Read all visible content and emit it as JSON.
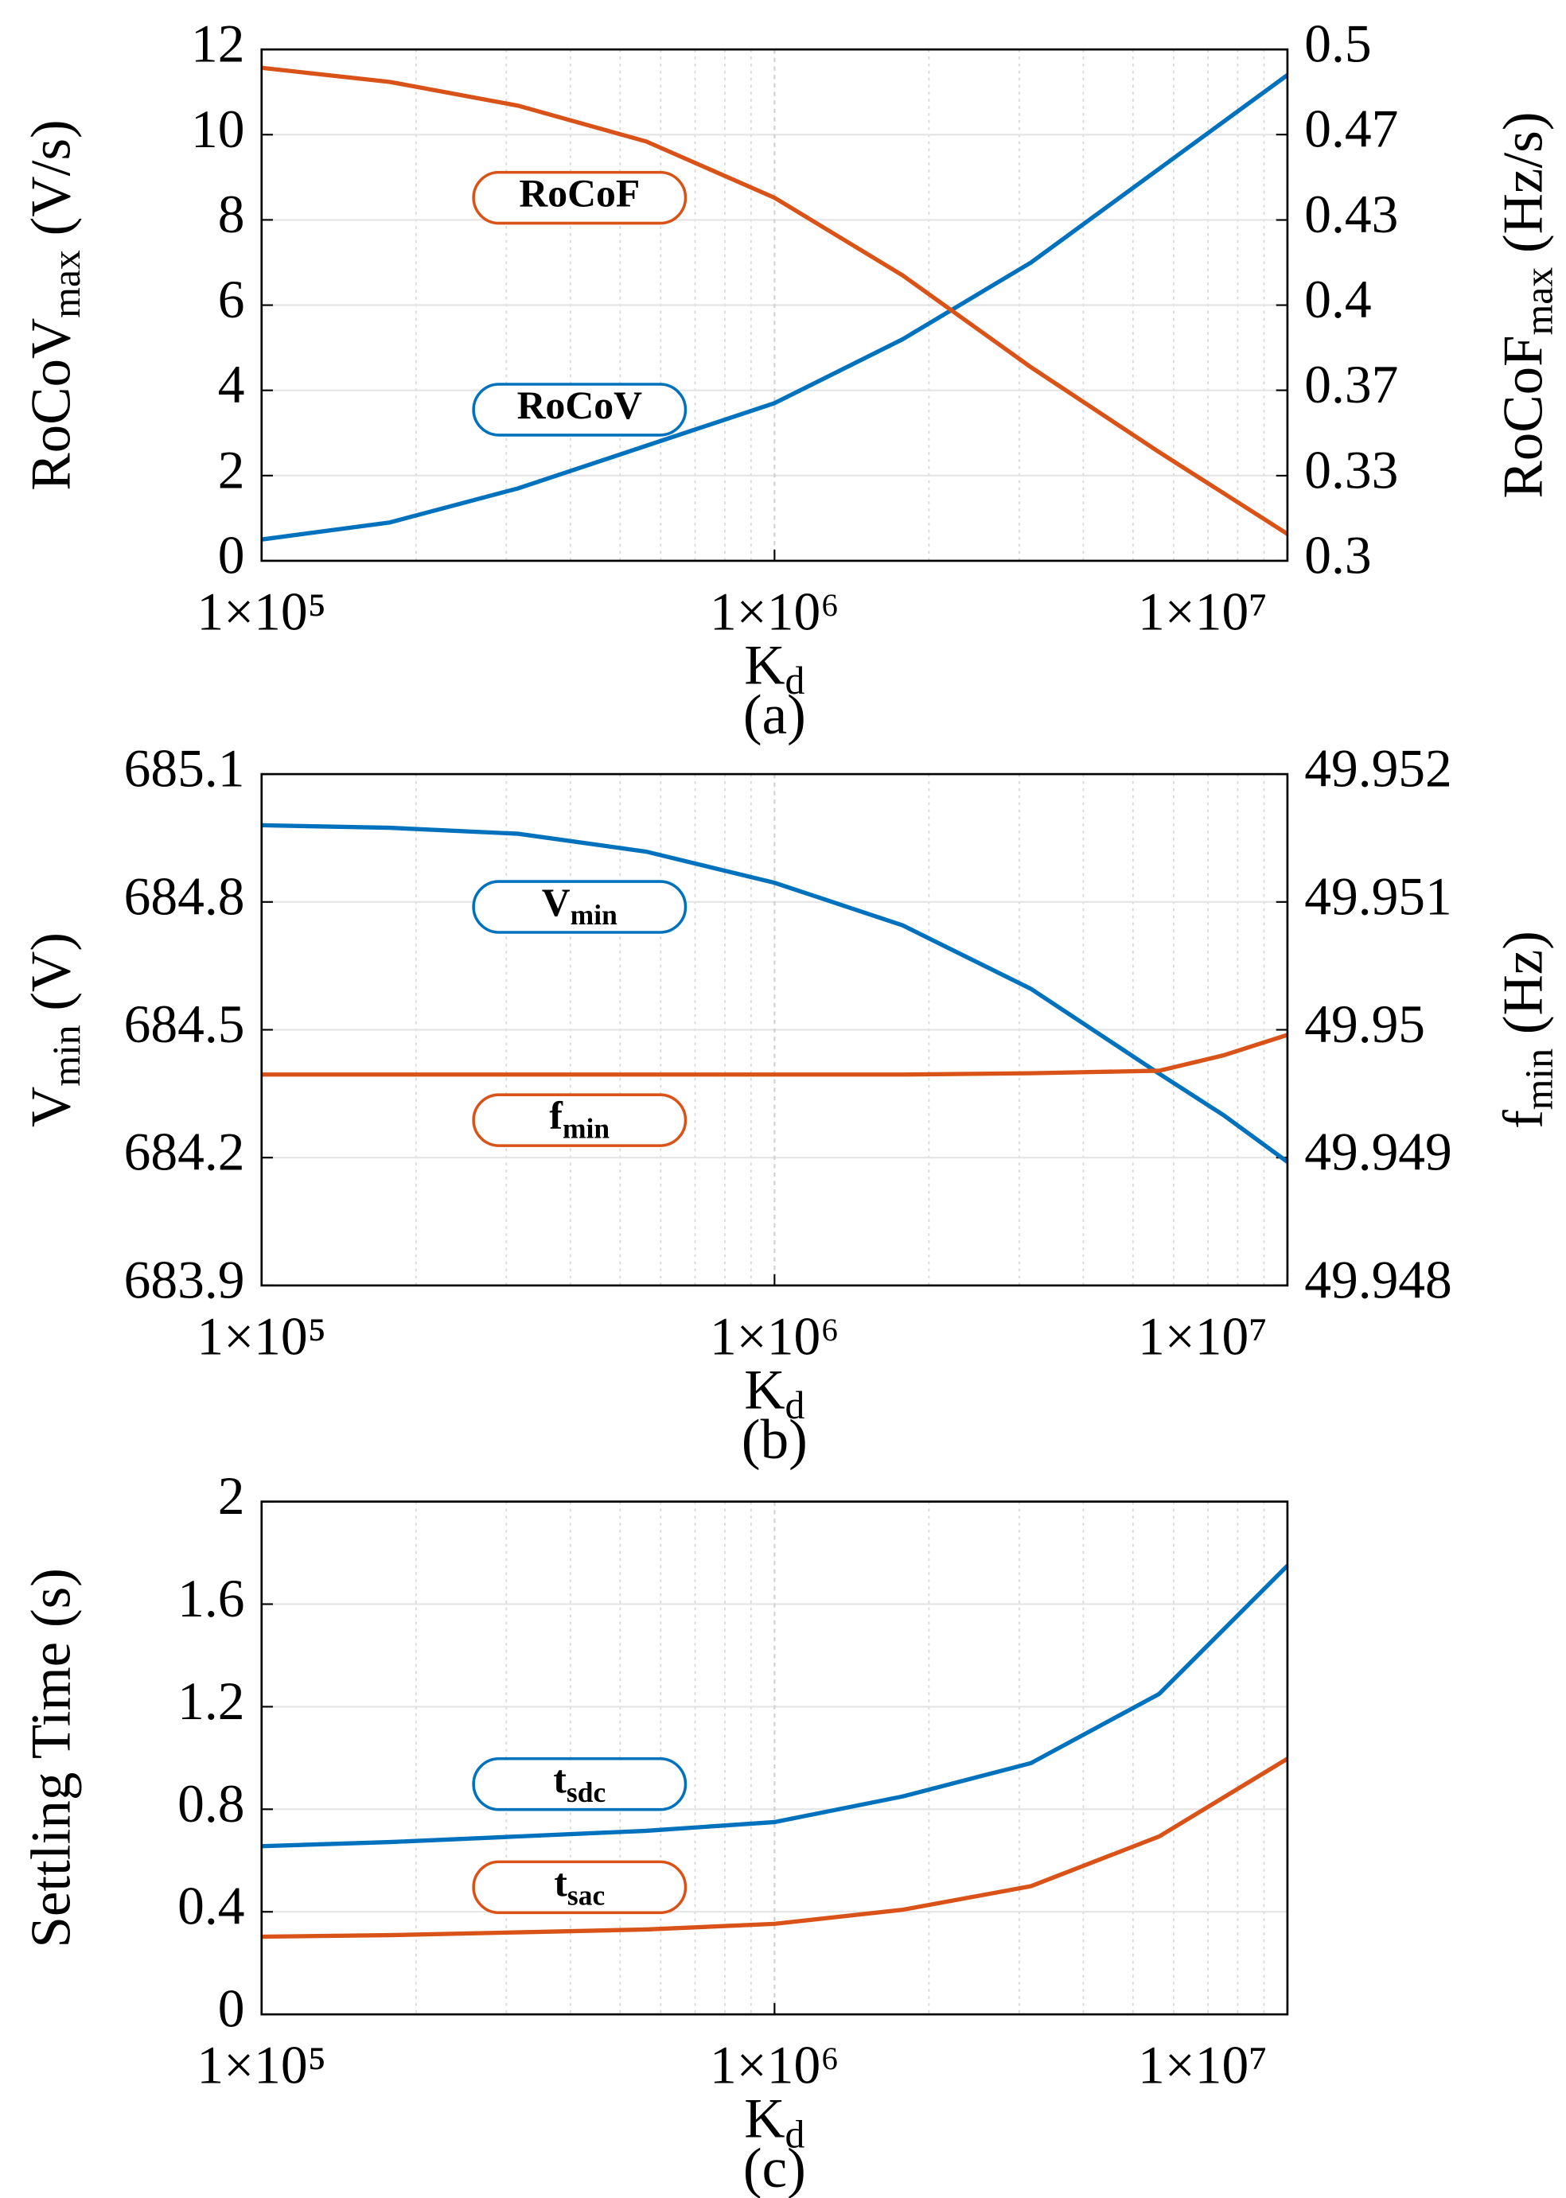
{
  "chart_data": [
    {
      "type": "line",
      "xscale": "log",
      "caption": "(a)",
      "xlabel": "K",
      "xlabel_sub": "d",
      "ylabel": "RoCoV",
      "ylabel_sub": "max",
      "ylabel_unit": "(V/s)",
      "y2label": "RoCoF",
      "y2label_sub": "max",
      "y2label_unit": "(Hz/s)",
      "grid": true,
      "minor_grid": true,
      "x": [
        100000,
        177800,
        316200,
        562300,
        1000000,
        1778000,
        3162000,
        5623000,
        10000000
      ],
      "xlim": [
        100000,
        10000000
      ],
      "xticks": [
        {
          "value": 100000,
          "label": "1×10⁵"
        },
        {
          "value": 1000000,
          "label": "1×10⁶"
        },
        {
          "value": 10000000,
          "label": "1×10⁷"
        }
      ],
      "ylim": [
        0,
        12
      ],
      "yticks": [
        0,
        2,
        4,
        6,
        8,
        10,
        12
      ],
      "y2lim": [
        0.3,
        0.5
      ],
      "y2ticks": [
        0.3,
        {
          "value": 0.3333,
          "label": "0.33"
        },
        {
          "value": 0.3667,
          "label": "0.37"
        },
        0.4,
        {
          "value": 0.4333,
          "label": "0.43"
        },
        {
          "value": 0.4667,
          "label": "0.47"
        },
        0.5
      ],
      "series": [
        {
          "name": "RoCoV",
          "color": "#0072bd",
          "values": [
            0.5,
            0.9,
            1.7,
            2.7,
            3.7,
            5.2,
            7.0,
            9.2,
            11.4
          ]
        },
        {
          "name": "RoCoF",
          "color": "#d95319",
          "axis": "y2",
          "values": [
            0.4928,
            0.4873,
            0.478,
            0.464,
            0.442,
            0.4116,
            0.3757,
            0.3425,
            0.3105
          ]
        }
      ]
    },
    {
      "type": "line",
      "xscale": "log",
      "caption": "(b)",
      "xlabel": "K",
      "xlabel_sub": "d",
      "ylabel": "V",
      "ylabel_sub": "min",
      "ylabel_unit": "(V)",
      "y2label": "f",
      "y2label_sub": "min",
      "y2label_unit": "(Hz)",
      "grid": true,
      "minor_grid": true,
      "x": [
        100000,
        177800,
        316200,
        562300,
        1000000,
        1778000,
        3162000,
        5623000,
        7499000,
        10000000
      ],
      "xlim": [
        100000,
        10000000
      ],
      "xticks": [
        {
          "value": 100000,
          "label": "1×10⁵"
        },
        {
          "value": 1000000,
          "label": "1×10⁶"
        },
        {
          "value": 10000000,
          "label": "1×10⁷"
        }
      ],
      "ylim": [
        683.9,
        685.1
      ],
      "yticks": [
        683.9,
        684.2,
        684.5,
        684.8,
        685.1
      ],
      "y2lim": [
        49.948,
        49.952
      ],
      "y2ticks": [
        49.948,
        49.949,
        49.95,
        49.951,
        49.952
      ],
      "series": [
        {
          "name": "V",
          "name_sub": "min",
          "color": "#0072bd",
          "values": [
            684.98,
            684.974,
            684.96,
            684.918,
            684.845,
            684.745,
            684.596,
            684.397,
            684.3,
            684.19
          ]
        },
        {
          "name": "f",
          "name_sub": "min",
          "color": "#d95319",
          "axis": "y2",
          "values": [
            49.94965,
            49.94965,
            49.94965,
            49.94965,
            49.94965,
            49.94965,
            49.94966,
            49.94968,
            49.9498,
            49.94996
          ]
        }
      ]
    },
    {
      "type": "line",
      "xscale": "log",
      "caption": "(c)",
      "xlabel": "K",
      "xlabel_sub": "d",
      "ylabel": "Settling Time (s)",
      "grid": true,
      "minor_grid": true,
      "x": [
        100000,
        177800,
        316200,
        562300,
        1000000,
        1778000,
        3162000,
        5623000,
        10000000
      ],
      "xlim": [
        100000,
        10000000
      ],
      "xticks": [
        {
          "value": 100000,
          "label": "1×10⁵"
        },
        {
          "value": 1000000,
          "label": "1×10⁶"
        },
        {
          "value": 10000000,
          "label": "1×10⁷"
        }
      ],
      "ylim": [
        0,
        2
      ],
      "yticks": [
        0,
        0.4,
        0.8,
        1.2,
        1.6,
        2
      ],
      "series": [
        {
          "name": "t",
          "name_sub": "sdc",
          "color": "#0072bd",
          "values": [
            0.656,
            0.672,
            0.694,
            0.716,
            0.75,
            0.85,
            0.98,
            1.25,
            1.75
          ]
        },
        {
          "name": "t",
          "name_sub": "sac",
          "color": "#d95319",
          "values": [
            0.303,
            0.309,
            0.32,
            0.331,
            0.353,
            0.408,
            0.5,
            0.694,
            0.997
          ]
        }
      ]
    }
  ]
}
